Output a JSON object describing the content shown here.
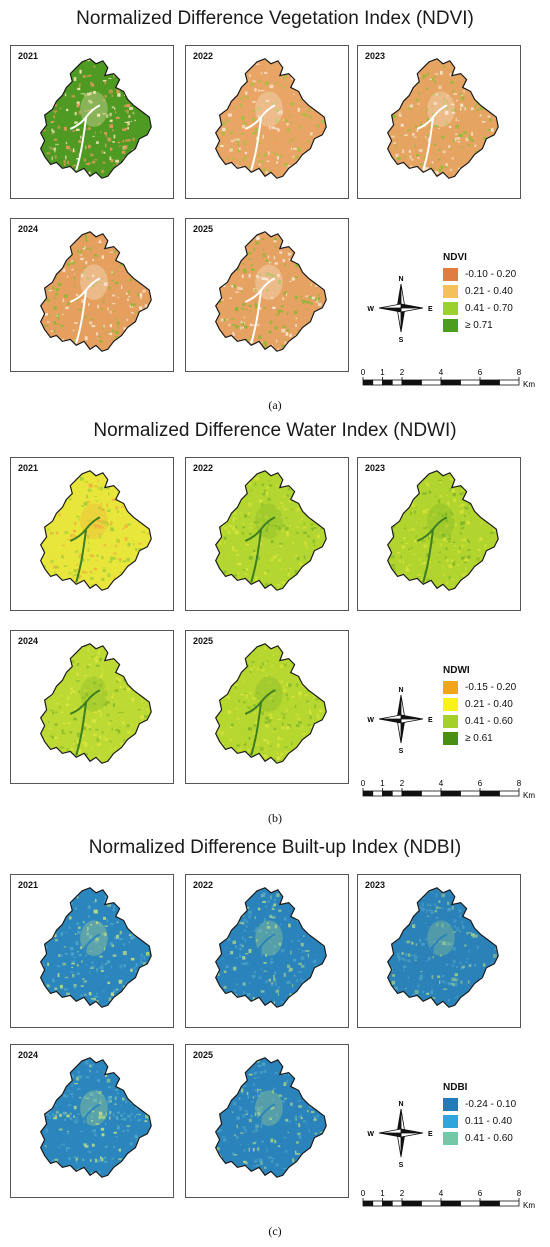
{
  "figures": [
    {
      "id": "ndvi",
      "title": "Normalized Difference Vegetation Index (NDVI)",
      "caption": "(a)",
      "legend_title": "NDVI",
      "legend": [
        {
          "label": "-0.10 - 0.20",
          "color": "#e07d43"
        },
        {
          "label": "0.21 - 0.40",
          "color": "#f4c05a"
        },
        {
          "label": "0.41 - 0.70",
          "color": "#9ad12f"
        },
        {
          "label": "≥ 0.71",
          "color": "#4a9e1f"
        }
      ],
      "panels": [
        {
          "year": "2021",
          "base": "#4e9a22",
          "speck": "#e29a5c",
          "speck2": "#f6e6b9",
          "river": "#ffffff"
        },
        {
          "year": "2022",
          "base": "#e8a565",
          "speck": "#9fc33a",
          "speck2": "#f8e7d4",
          "river": "#ffffff"
        },
        {
          "year": "2023",
          "base": "#e6a463",
          "speck": "#8cbc32",
          "speck2": "#f8e7d4",
          "river": "#ffffff"
        },
        {
          "year": "2024",
          "base": "#e5a060",
          "speck": "#8ab830",
          "speck2": "#f8e7d4",
          "river": "#ffffff"
        },
        {
          "year": "2025",
          "base": "#e6a262",
          "speck": "#8ab830",
          "speck2": "#f8e7d4",
          "river": "#ffffff"
        }
      ]
    },
    {
      "id": "ndwi",
      "title": "Normalized Difference Water Index (NDWI)",
      "caption": "(b)",
      "legend_title": "NDWI",
      "legend": [
        {
          "label": "-0.15 - 0.20",
          "color": "#f2a51a"
        },
        {
          "label": "0.21 - 0.40",
          "color": "#f7f21a"
        },
        {
          "label": "0.41 - 0.60",
          "color": "#a5d02a"
        },
        {
          "label": "≥ 0.61",
          "color": "#4a8e12"
        }
      ],
      "panels": [
        {
          "year": "2021",
          "base": "#e8e63a",
          "speck": "#a6cf3a",
          "speck2": "#f0b040",
          "river": "#3b7d22"
        },
        {
          "year": "2022",
          "base": "#b4d630",
          "speck": "#d8e43a",
          "speck2": "#82b82a",
          "river": "#3b7d22"
        },
        {
          "year": "2023",
          "base": "#b2d42e",
          "speck": "#d6e238",
          "speck2": "#7fb628",
          "river": "#3b7d22"
        },
        {
          "year": "2024",
          "base": "#bcd934",
          "speck": "#dbe63c",
          "speck2": "#88bb2a",
          "river": "#3b7d22"
        },
        {
          "year": "2025",
          "base": "#b6d630",
          "speck": "#d8e43a",
          "speck2": "#82b82a",
          "river": "#3b7d22"
        }
      ]
    },
    {
      "id": "ndbi",
      "title": "Normalized Difference Built-up Index (NDBI)",
      "caption": "(c)",
      "legend_title": "NDBI",
      "legend": [
        {
          "label": "-0.24 - 0.10",
          "color": "#1f7cb8"
        },
        {
          "label": "0.11 - 0.40",
          "color": "#2ea6db"
        },
        {
          "label": "0.41 - 0.60",
          "color": "#72c9a8"
        }
      ],
      "panels": [
        {
          "year": "2021",
          "base": "#2b86bd",
          "speck": "#4fa6c8",
          "speck2": "#b9d98a",
          "river": "#2b86bd"
        },
        {
          "year": "2022",
          "base": "#2a84bb",
          "speck": "#4aa2c6",
          "speck2": "#a6d08e",
          "river": "#2a84bb"
        },
        {
          "year": "2023",
          "base": "#2a82b9",
          "speck": "#4aa0c4",
          "speck2": "#98c88e",
          "river": "#2a82b9"
        },
        {
          "year": "2024",
          "base": "#2b86bd",
          "speck": "#4ea6c8",
          "speck2": "#b0d68a",
          "river": "#2b86bd"
        },
        {
          "year": "2025",
          "base": "#2a84bb",
          "speck": "#4aa2c6",
          "speck2": "#a8d28c",
          "river": "#2a84bb"
        }
      ]
    }
  ],
  "compass": {
    "n": "N",
    "s": "S",
    "e": "E",
    "w": "W"
  },
  "scalebar": {
    "ticks": [
      "0",
      "1",
      "2",
      "4",
      "6",
      "8"
    ],
    "unit": "Km"
  }
}
